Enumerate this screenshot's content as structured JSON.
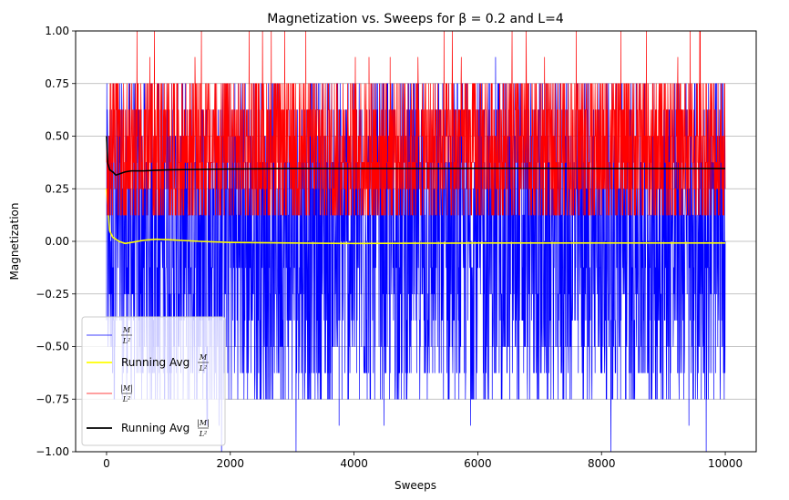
{
  "chart_data": {
    "type": "line",
    "title": "Magnetization vs. Sweeps for β = 0.2 and L=4",
    "xlabel": "Sweeps",
    "ylabel": "Magnetization",
    "xlim": [
      -500,
      10500
    ],
    "ylim": [
      -1.0,
      1.0
    ],
    "x_ticks": [
      0,
      2000,
      4000,
      6000,
      8000,
      10000
    ],
    "x_tick_labels": [
      "0",
      "2000",
      "4000",
      "6000",
      "8000",
      "10000"
    ],
    "y_ticks": [
      -1.0,
      -0.75,
      -0.5,
      -0.25,
      0.0,
      0.25,
      0.5,
      0.75,
      1.0
    ],
    "y_tick_labels": [
      "−1.00",
      "−0.75",
      "−0.50",
      "−0.25",
      "0.00",
      "0.25",
      "0.50",
      "0.75",
      "1.00"
    ],
    "grid": "horizontal",
    "legend_position": "lower-left",
    "series": [
      {
        "name": "M/L²",
        "legend_num": "M",
        "legend_den": "L²",
        "legend_prefix": "",
        "color": "#0000ff",
        "style": "noisy",
        "x_range": [
          0,
          10000
        ],
        "levels": [
          -1.0,
          -0.875,
          -0.75,
          -0.625,
          -0.5,
          -0.375,
          -0.25,
          -0.125,
          0.0,
          0.125,
          0.25,
          0.375,
          0.5,
          0.625,
          0.75,
          0.875,
          1.0
        ],
        "dense_band": [
          -0.75,
          0.75
        ],
        "notes": "sampled fluctuating magnetization values per sweep"
      },
      {
        "name": "Running Avg M/L²",
        "legend_num": "M",
        "legend_den": "L²",
        "legend_prefix": "Running Avg ",
        "color": "#ffff00",
        "style": "line",
        "x": [
          0,
          50,
          100,
          200,
          300,
          400,
          600,
          800,
          1000,
          1500,
          2000,
          3000,
          4000,
          5000,
          6000,
          7000,
          8000,
          9000,
          10000
        ],
        "y": [
          0.25,
          0.05,
          0.02,
          0.0,
          -0.01,
          -0.005,
          0.005,
          0.01,
          0.008,
          0.0,
          -0.005,
          -0.008,
          -0.01,
          -0.009,
          -0.008,
          -0.008,
          -0.008,
          -0.008,
          -0.008
        ]
      },
      {
        "name": "|M|/L²",
        "legend_num": "|M|",
        "legend_den": "L²",
        "legend_prefix": "",
        "color": "#ff0000",
        "style": "noisy",
        "x_range": [
          0,
          10000
        ],
        "levels": [
          0.125,
          0.25,
          0.375,
          0.5,
          0.625,
          0.75,
          0.875,
          1.0
        ],
        "dense_band": [
          0.125,
          0.75
        ]
      },
      {
        "name": "Running Avg |M|/L²",
        "legend_num": "|M|",
        "legend_den": "L²",
        "legend_prefix": "Running Avg ",
        "color": "#000000",
        "style": "line",
        "x": [
          0,
          20,
          50,
          100,
          150,
          200,
          300,
          400,
          600,
          800,
          1000,
          1500,
          2000,
          3000,
          4000,
          5000,
          6000,
          7000,
          8000,
          9000,
          10000
        ],
        "y": [
          0.5,
          0.37,
          0.34,
          0.33,
          0.315,
          0.32,
          0.33,
          0.335,
          0.335,
          0.338,
          0.34,
          0.342,
          0.344,
          0.346,
          0.346,
          0.346,
          0.347,
          0.347,
          0.346,
          0.346,
          0.346
        ]
      }
    ]
  }
}
